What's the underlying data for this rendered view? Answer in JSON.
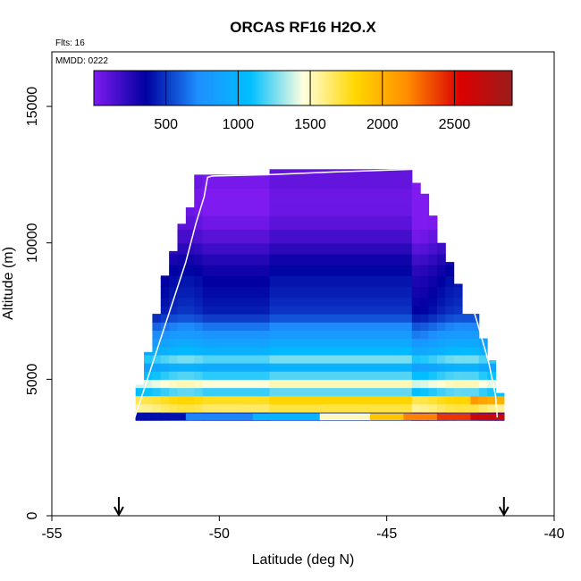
{
  "chart_data": {
    "type": "heatmap",
    "title": "ORCAS RF16 H2O.X",
    "xlabel": "Latitude (deg N)",
    "ylabel": "Altitude (m)",
    "xlim": [
      -55,
      -40
    ],
    "ylim": [
      0,
      17000
    ],
    "xticks": [
      -55,
      -50,
      -45,
      -40
    ],
    "yticks": [
      0,
      5000,
      10000,
      15000
    ],
    "annotations": {
      "flights": "Flts: 16",
      "date": "MMDD: 0222"
    },
    "colorbar": {
      "range": [
        0,
        2900
      ],
      "ticks": [
        500,
        1000,
        1500,
        2000,
        2500
      ],
      "stops": [
        "#7f1bf0",
        "#0000a0",
        "#1e90ff",
        "#00bfff",
        "#ffffe0",
        "#ffd700",
        "#ff8c00",
        "#dc0000",
        "#9b1c1c"
      ]
    },
    "columns": [
      {
        "lat_min": -52.5,
        "lat_max": -52.25,
        "alt_min": 3500,
        "alt_max": 4800
      },
      {
        "lat_min": -52.25,
        "lat_max": -52.0,
        "alt_min": 3500,
        "alt_max": 6000
      },
      {
        "lat_min": -52.0,
        "lat_max": -51.75,
        "alt_min": 3500,
        "alt_max": 7400
      },
      {
        "lat_min": -51.75,
        "lat_max": -51.5,
        "alt_min": 3500,
        "alt_max": 8800
      },
      {
        "lat_min": -51.5,
        "lat_max": -51.25,
        "alt_min": 3500,
        "alt_max": 9700
      },
      {
        "lat_min": -51.25,
        "lat_max": -51.0,
        "alt_min": 3500,
        "alt_max": 10700
      },
      {
        "lat_min": -51.0,
        "lat_max": -50.75,
        "alt_min": 3500,
        "alt_max": 11300
      },
      {
        "lat_min": -50.75,
        "lat_max": -50.5,
        "alt_min": 3500,
        "alt_max": 12500
      },
      {
        "lat_min": -50.5,
        "lat_max": -48.5,
        "alt_min": 3500,
        "alt_max": 12500
      },
      {
        "lat_min": -48.5,
        "lat_max": -44.25,
        "alt_min": 3500,
        "alt_max": 12700
      },
      {
        "lat_min": -44.25,
        "lat_max": -44.0,
        "alt_min": 3500,
        "alt_max": 12200
      },
      {
        "lat_min": -44.0,
        "lat_max": -43.75,
        "alt_min": 3500,
        "alt_max": 11800
      },
      {
        "lat_min": -43.75,
        "lat_max": -43.5,
        "alt_min": 3500,
        "alt_max": 11000
      },
      {
        "lat_min": -43.5,
        "lat_max": -43.25,
        "alt_min": 3500,
        "alt_max": 10000
      },
      {
        "lat_min": -43.25,
        "lat_max": -43.0,
        "alt_min": 3500,
        "alt_max": 9300
      },
      {
        "lat_min": -43.0,
        "lat_max": -42.75,
        "alt_min": 3500,
        "alt_max": 8500
      },
      {
        "lat_min": -42.75,
        "lat_max": -42.25,
        "alt_min": 3500,
        "alt_max": 7400
      },
      {
        "lat_min": -42.25,
        "lat_max": -42.0,
        "alt_min": 3500,
        "alt_max": 6500
      },
      {
        "lat_min": -42.0,
        "lat_max": -41.75,
        "alt_min": 3500,
        "alt_max": 5700
      },
      {
        "lat_min": -41.75,
        "lat_max": -41.5,
        "alt_min": 3500,
        "alt_max": 4500
      }
    ],
    "layers": [
      {
        "alt_min": 3500,
        "alt_max": 3800,
        "value": 400
      },
      {
        "alt_min": 3800,
        "alt_max": 4100,
        "value": 1600
      },
      {
        "alt_min": 4100,
        "alt_max": 4400,
        "value": 1700
      },
      {
        "lat_min": -42.5,
        "alt_min": 4100,
        "alt_max": 4400,
        "value": 2000
      },
      {
        "alt_min": 4400,
        "alt_max": 4700,
        "value": 1100
      },
      {
        "alt_min": 4700,
        "alt_max": 5000,
        "value": 1400
      },
      {
        "alt_min": 5000,
        "alt_max": 5300,
        "value": 1100
      },
      {
        "alt_min": 5300,
        "alt_max": 5600,
        "value": 900
      },
      {
        "alt_min": 5600,
        "alt_max": 5900,
        "value": 1200
      },
      {
        "alt_min": 5900,
        "alt_max": 6200,
        "value": 1000
      },
      {
        "alt_min": 6200,
        "alt_max": 6500,
        "value": 900
      },
      {
        "alt_min": 6500,
        "alt_max": 6800,
        "value": 800
      },
      {
        "alt_min": 6800,
        "alt_max": 7100,
        "value": 700
      },
      {
        "alt_min": 7100,
        "alt_max": 7400,
        "value": 550
      },
      {
        "alt_min": 7400,
        "alt_max": 7700,
        "value": 450
      },
      {
        "alt_min": 7700,
        "alt_max": 8000,
        "value": 400
      },
      {
        "alt_min": 8000,
        "alt_max": 8400,
        "value": 350
      },
      {
        "alt_min": 8400,
        "alt_max": 8800,
        "value": 300
      },
      {
        "alt_min": 8800,
        "alt_max": 9200,
        "value": 250
      },
      {
        "alt_min": 9200,
        "alt_max": 9600,
        "value": 200
      },
      {
        "alt_min": 9600,
        "alt_max": 10000,
        "value": 150
      },
      {
        "alt_min": 10000,
        "alt_max": 10500,
        "value": 110
      },
      {
        "alt_min": 10500,
        "alt_max": 11000,
        "value": 80
      },
      {
        "alt_min": 11000,
        "alt_max": 11500,
        "value": 50
      },
      {
        "alt_min": 11500,
        "alt_max": 12000,
        "value": 30
      },
      {
        "alt_min": 12000,
        "alt_max": 12800,
        "value": 20
      }
    ],
    "surface_band": {
      "alt_min": 3500,
      "alt_max": 3750,
      "values": [
        {
          "lat_min": -52.5,
          "lat_max": -51.0,
          "value": 400
        },
        {
          "lat_min": -51.0,
          "lat_max": -49.0,
          "value": 700
        },
        {
          "lat_min": -49.0,
          "lat_max": -47.0,
          "value": 1000
        },
        {
          "lat_min": -47.0,
          "lat_max": -45.5,
          "value": 1500
        },
        {
          "lat_min": -45.5,
          "lat_max": -44.5,
          "value": 1900
        },
        {
          "lat_min": -44.5,
          "lat_max": -43.5,
          "value": 2200
        },
        {
          "lat_min": -43.5,
          "lat_max": -42.5,
          "value": 2400
        },
        {
          "lat_min": -42.5,
          "lat_max": -41.5,
          "value": 2650
        }
      ]
    },
    "flight_track": [
      [
        -52.55,
        3500
      ],
      [
        -52.2,
        4800
      ],
      [
        -51.8,
        6300
      ],
      [
        -51.4,
        7800
      ],
      [
        -51.0,
        9300
      ],
      [
        -50.7,
        10700
      ],
      [
        -50.45,
        11700
      ],
      [
        -50.35,
        12400
      ],
      [
        -50.2,
        12450
      ],
      [
        -48.5,
        12500
      ],
      [
        -46.5,
        12600
      ],
      [
        -44.1,
        12700
      ],
      [
        -43.7,
        11900
      ],
      [
        -43.2,
        10300
      ],
      [
        -42.7,
        8700
      ],
      [
        -42.3,
        7100
      ],
      [
        -41.95,
        5600
      ],
      [
        -41.75,
        4400
      ],
      [
        -41.7,
        3600
      ]
    ],
    "markers": [
      {
        "lat": -53.0,
        "label": ""
      },
      {
        "lat": -41.5,
        "label": ""
      }
    ]
  }
}
